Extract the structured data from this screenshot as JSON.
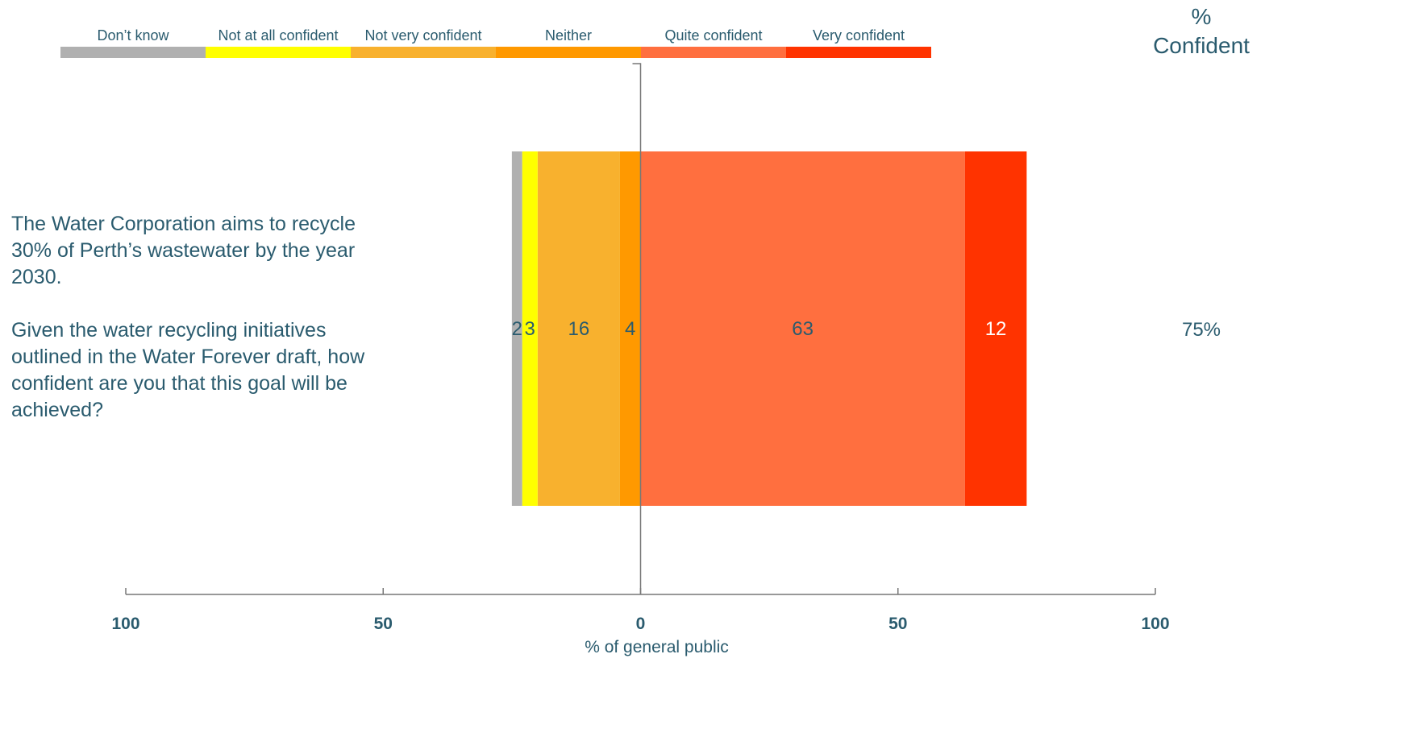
{
  "question": {
    "line1": "The Water Corporation aims to recycle 30% of Perth’s wastewater by the year 2030.",
    "line2": "Given the water recycling initiatives outlined in the Water Forever draft, how confident are you that this goal will be achieved?"
  },
  "summary_header": "%\nConfident",
  "chart_data": {
    "type": "bar",
    "orientation": "horizontal",
    "stacked": "diverging",
    "xlabel": "% of general public",
    "xlim": [
      -100,
      100
    ],
    "xticks": [
      -100,
      -50,
      0,
      50,
      100
    ],
    "xtick_labels": [
      "100",
      "50",
      "0",
      "50",
      "100"
    ],
    "legend_position": "top",
    "categories": [
      "The Water Corporation aims to recycle 30% of Perth’s wastewater by the year 2030. Given the water recycling initiatives outlined in the Water Forever draft, how confident are you that this goal will be achieved?"
    ],
    "series": [
      {
        "name": "Don’t know",
        "values": [
          2
        ],
        "label": "2",
        "side": "negative",
        "color": "#b0b0b0"
      },
      {
        "name": "Not at all confident",
        "values": [
          3
        ],
        "label": "3",
        "side": "negative",
        "color": "#ffff00"
      },
      {
        "name": "Not very confident",
        "values": [
          16
        ],
        "label": "16",
        "side": "negative",
        "color": "#f8b12e"
      },
      {
        "name": "Neither",
        "values": [
          4
        ],
        "label": "4",
        "side": "negative",
        "color": "#ff9900"
      },
      {
        "name": "Quite confident",
        "values": [
          63
        ],
        "label": "63",
        "side": "positive",
        "color": "#ff6f3f"
      },
      {
        "name": "Very confident",
        "values": [
          12
        ],
        "label": "12",
        "side": "positive",
        "color": "#ff3300"
      }
    ],
    "summary_values": [
      "75%"
    ]
  }
}
